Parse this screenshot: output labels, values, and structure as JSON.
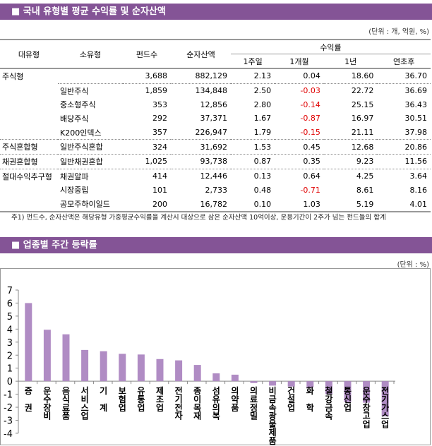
{
  "section1": {
    "title": "■ 국내 유형별 평균 수익률 및 순자산액",
    "unit": "(단위 : 개, 억원, %)"
  },
  "table": {
    "headers": {
      "major": "대유형",
      "minor": "소유형",
      "funds": "펀드수",
      "assets": "순자산액",
      "returns": "수익률",
      "w1": "1주일",
      "m1": "1개월",
      "y1": "1년",
      "ytd": "연초후"
    },
    "rows": [
      {
        "major": "주식형",
        "minor": "",
        "funds": "3,688",
        "assets": "882,129",
        "w1": "2.13",
        "m1": "0.04",
        "y1": "18.60",
        "ytd": "36.70"
      },
      {
        "major": "",
        "minor": "일반주식",
        "funds": "1,859",
        "assets": "134,848",
        "w1": "2.50",
        "m1": "-0.03",
        "y1": "22.72",
        "ytd": "36.69"
      },
      {
        "major": "",
        "minor": "중소형주식",
        "funds": "353",
        "assets": "12,856",
        "w1": "2.80",
        "m1": "-0.14",
        "y1": "25.15",
        "ytd": "36.43"
      },
      {
        "major": "",
        "minor": "배당주식",
        "funds": "292",
        "assets": "37,371",
        "w1": "1.67",
        "m1": "-0.87",
        "y1": "16.97",
        "ytd": "30.51"
      },
      {
        "major": "",
        "minor": "K200인덱스",
        "funds": "357",
        "assets": "226,947",
        "w1": "1.79",
        "m1": "-0.15",
        "y1": "21.11",
        "ytd": "37.98"
      },
      {
        "major": "주식혼합형",
        "minor": "일반주식혼합",
        "funds": "324",
        "assets": "31,692",
        "w1": "1.53",
        "m1": "0.45",
        "y1": "12.68",
        "ytd": "20.86"
      },
      {
        "major": "채권혼합형",
        "minor": "일반채권혼합",
        "funds": "1,025",
        "assets": "93,738",
        "w1": "0.87",
        "m1": "0.35",
        "y1": "9.23",
        "ytd": "11.56"
      },
      {
        "major": "절대수익추구형",
        "minor": "채권알파",
        "funds": "414",
        "assets": "12,446",
        "w1": "0.13",
        "m1": "0.64",
        "y1": "4.25",
        "ytd": "3.64"
      },
      {
        "major": "",
        "minor": "시장중립",
        "funds": "101",
        "assets": "2,733",
        "w1": "0.48",
        "m1": "-0.71",
        "y1": "8.61",
        "ytd": "8.16"
      },
      {
        "major": "",
        "minor": "공모주하이일드",
        "funds": "200",
        "assets": "16,782",
        "w1": "0.10",
        "m1": "1.03",
        "y1": "5.19",
        "ytd": "4.01"
      }
    ]
  },
  "note": "주1) 펀드수, 순자산액은 해당유형 가중평균수익률을 계산시 대상으로 삼은 순자산액 10억이상, 운용기간이 2주가 넘는 펀드들의 합계",
  "section2": {
    "title": "■ 업종별 주간 등락률",
    "unit": "(단위 : %)"
  },
  "colors": {
    "header": "#845496",
    "bar": "#b08cc4",
    "negative": "#e00000"
  },
  "chart_data": {
    "type": "bar",
    "title": "",
    "xlabel": "",
    "ylabel": "",
    "ylim": [
      -4,
      7
    ],
    "yticks": [
      -4,
      -3,
      -2,
      -1,
      0,
      1,
      2,
      3,
      4,
      5,
      6,
      7
    ],
    "categories": [
      "증 권",
      "운수장비",
      "음식료품",
      "서비스업",
      "기 계",
      "보험업",
      "유통업",
      "제조업",
      "전기전자",
      "종이목재",
      "섬유의복",
      "의약품",
      "의료정밀",
      "비금속광물제품",
      "건설업",
      "화 학",
      "철강금속",
      "통신업",
      "운수창고업",
      "전기가스업"
    ],
    "values": [
      6.0,
      3.95,
      3.6,
      2.4,
      2.3,
      2.1,
      2.05,
      1.7,
      1.6,
      1.25,
      0.6,
      0.5,
      -0.14,
      -0.34,
      -0.41,
      -0.48,
      -1.0,
      -1.6,
      -1.65,
      -2.7
    ]
  }
}
